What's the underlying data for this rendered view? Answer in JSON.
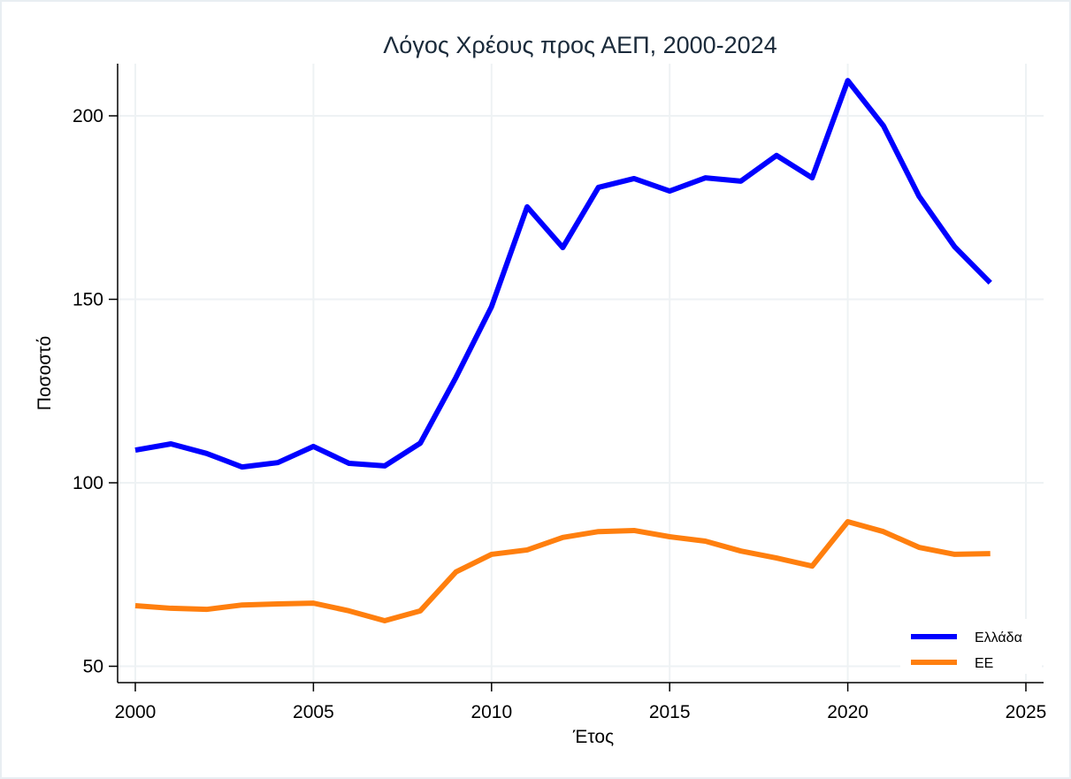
{
  "chart_data": {
    "type": "line",
    "title": "Λόγος Χρέους προς ΑΕΠ, 2000-2024",
    "xlabel": "Έτος",
    "ylabel": "Ποσοστό",
    "xlim": [
      2000,
      2025
    ],
    "ylim": [
      50,
      210
    ],
    "xticks": [
      2000,
      2005,
      2010,
      2015,
      2020,
      2025
    ],
    "yticks": [
      50,
      100,
      150,
      200
    ],
    "grid": true,
    "legend_position": "bottom-right",
    "x": [
      2000,
      2001,
      2002,
      2003,
      2004,
      2005,
      2006,
      2007,
      2008,
      2009,
      2010,
      2011,
      2012,
      2013,
      2014,
      2015,
      2016,
      2017,
      2018,
      2019,
      2020,
      2021,
      2022,
      2023,
      2024
    ],
    "series": [
      {
        "name": "Ελλάδα",
        "color": "#0000ff",
        "values": [
          108.9,
          110.6,
          108.0,
          104.3,
          105.5,
          109.9,
          105.3,
          104.6,
          110.8,
          128.7,
          148.0,
          175.2,
          164.1,
          180.5,
          182.9,
          179.5,
          183.1,
          182.2,
          189.2,
          183.1,
          209.6,
          197.3,
          178.1,
          164.3,
          154.5
        ]
      },
      {
        "name": "ΕΕ",
        "color": "#ff7f0e",
        "values": [
          66.5,
          65.8,
          65.5,
          66.7,
          67.0,
          67.2,
          65.1,
          62.4,
          65.1,
          75.7,
          80.5,
          81.7,
          85.1,
          86.7,
          87.0,
          85.3,
          84.1,
          81.4,
          79.5,
          77.3,
          89.4,
          86.7,
          82.4,
          80.5,
          80.7
        ]
      }
    ]
  }
}
